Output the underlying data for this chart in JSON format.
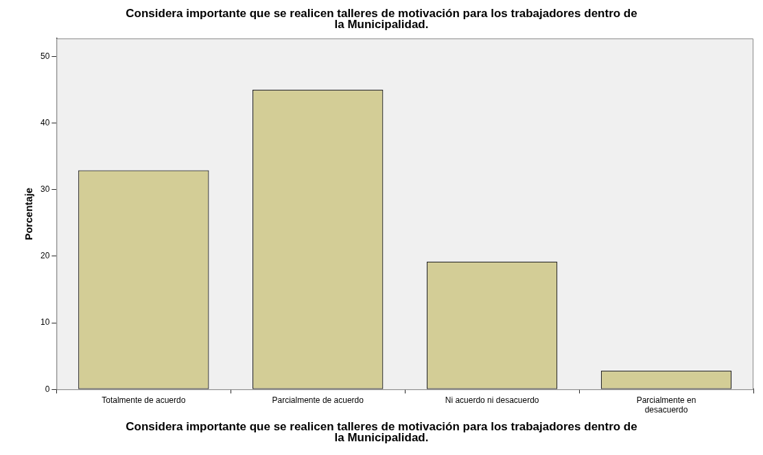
{
  "chart_data": {
    "type": "bar",
    "title": "Considera importante que se realicen talleres de motivación para los trabajadores dentro de la Municipalidad.",
    "xlabel": "Considera importante que se realicen talleres de motivación para los trabajadores dentro de la Municipalidad.",
    "ylabel": "Porcentaje",
    "categories": [
      "Totalmente de acuerdo",
      "Parcialmente de acuerdo",
      "Ni acuerdo ni desacuerdo",
      "Parcialmente en desacuerdo"
    ],
    "values": [
      32.9,
      45,
      19.2,
      2.8
    ],
    "color": "#d3cd96",
    "ylim": [
      0,
      52.7
    ],
    "yticks": [
      0,
      10,
      20,
      30,
      40,
      50
    ],
    "grid": false,
    "legend": false
  }
}
